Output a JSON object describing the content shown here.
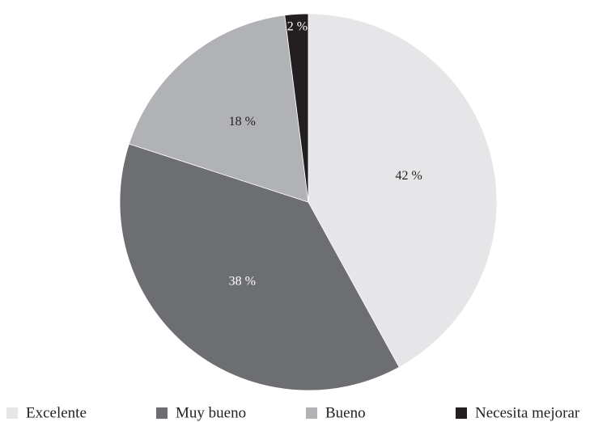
{
  "chart_data": {
    "type": "pie",
    "categories": [
      "Excelente",
      "Muy bueno",
      "Bueno",
      "Necesita mejorar"
    ],
    "values": [
      42,
      38,
      18,
      2
    ],
    "value_labels": [
      "42 %",
      "38 %",
      "18 %",
      "2 %"
    ],
    "colors": [
      "#e6e6e8",
      "#6d6e71",
      "#b1b2b5",
      "#231f20"
    ],
    "legend": "bottom"
  }
}
